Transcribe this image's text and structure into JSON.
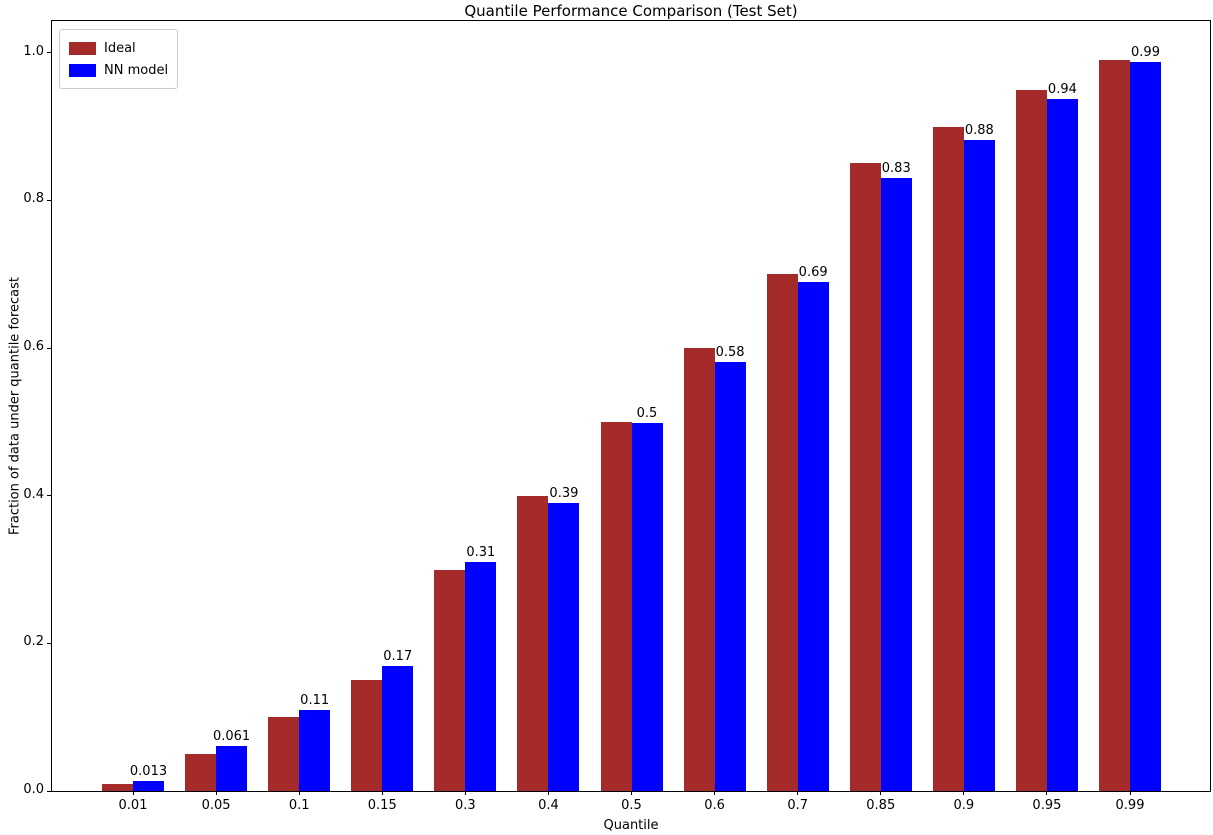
{
  "chart_data": {
    "type": "bar",
    "title": "Quantile Performance Comparison (Test Set)",
    "xlabel": "Quantile",
    "ylabel": "Fraction of data under quantile forecast",
    "categories": [
      "0.01",
      "0.05",
      "0.1",
      "0.15",
      "0.3",
      "0.4",
      "0.5",
      "0.6",
      "0.7",
      "0.85",
      "0.9",
      "0.95",
      "0.99"
    ],
    "series": [
      {
        "name": "Ideal",
        "color": "#A52A2A",
        "values": [
          0.01,
          0.05,
          0.1,
          0.15,
          0.3,
          0.4,
          0.5,
          0.6,
          0.7,
          0.85,
          0.9,
          0.95,
          0.99
        ]
      },
      {
        "name": "NN model",
        "color": "#0000FF",
        "values": [
          0.013,
          0.061,
          0.11,
          0.169,
          0.31,
          0.39,
          0.499,
          0.581,
          0.689,
          0.831,
          0.882,
          0.937,
          0.988
        ],
        "bar_labels": [
          "0.013",
          "0.061",
          "0.11",
          "0.17",
          "0.31",
          "0.39",
          "0.5",
          "0.58",
          "0.69",
          "0.83",
          "0.88",
          "0.94",
          "0.99"
        ]
      }
    ],
    "yticks": [
      "0.0",
      "0.2",
      "0.4",
      "0.6",
      "0.8",
      "1.0"
    ],
    "ylim": [
      0,
      1.043
    ],
    "legend_position": "upper left",
    "grid": false,
    "axis_color": "#000000",
    "background_color": "#ffffff"
  }
}
